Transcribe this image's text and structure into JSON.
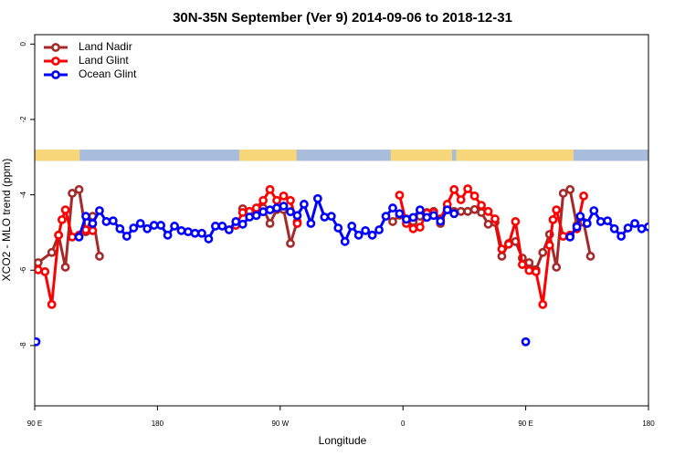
{
  "chart_data": {
    "type": "line",
    "title": "30N-35N September (Ver 9)   2014-09-06 to 2018-12-31",
    "xlabel": "Longitude",
    "ylabel": "XCO2 - MLO trend (ppm)",
    "xlim": [
      90,
      540
    ],
    "ylim": [
      -9.6,
      0.25
    ],
    "xticks": [
      {
        "value": 90,
        "label": "90 E"
      },
      180,
      {
        "value": 270,
        "label": "90 W"
      },
      {
        "value": 360,
        "label": "0"
      },
      {
        "value": 450,
        "label": "90 E"
      },
      {
        "value": 540,
        "label": "180"
      }
    ],
    "yticks": [
      0,
      -2,
      -4,
      -6,
      -8
    ],
    "legend": "top-left",
    "grid": false,
    "land_band": {
      "ylim": [
        -3.1,
        -2.8
      ],
      "land_color": "#f7d77a",
      "ocean_color": "#a8bcdb",
      "land": [
        [
          90,
          123
        ],
        [
          240,
          282
        ],
        [
          351,
          396
        ],
        [
          399,
          485
        ]
      ]
    },
    "series": [
      {
        "name": "Land Nadir",
        "color": "#a52a2a",
        "x": [
          92.5,
          102.5,
          107.5,
          112.5,
          117.5,
          122.5,
          127.5,
          132.5,
          137.5,
          140,
          242.5,
          247.5,
          252.5,
          257.5,
          262.5,
          267.5,
          272.5,
          277.5,
          282.5,
          285,
          352.5,
          357.5,
          362.5,
          367.5,
          372.5,
          377.5,
          382.5,
          387.5,
          392.5,
          397.5,
          402.5,
          407.5,
          412.5,
          417.5,
          422.5,
          427.5,
          432.5,
          437.5,
          442.5,
          447.5,
          452.5,
          457.5,
          462.5,
          467.5,
          472.5,
          477.5,
          482.5,
          487.5,
          492.5,
          497.5
        ],
        "values": [
          -5.8,
          -5.53,
          -5.07,
          -5.92,
          -3.96,
          -3.86,
          -4.98,
          -4.57,
          -5.63,
          null,
          -4.37,
          -4.47,
          -4.42,
          -4.35,
          -4.76,
          -4.39,
          -4.39,
          -5.29,
          -4.71,
          null,
          -4.71,
          -4.54,
          -4.64,
          -4.71,
          -4.57,
          -4.47,
          -4.44,
          -4.76,
          -4.35,
          -4.44,
          -4.44,
          -4.44,
          -4.39,
          -4.47,
          -4.78,
          -4.73,
          -5.63,
          -5.29,
          -5.24,
          -5.68,
          -5.8,
          -5.99,
          -5.53,
          -5.05,
          -5.92,
          -3.96,
          -3.86,
          -4.81,
          -4.73,
          -5.63
        ]
      },
      {
        "name": "Land Glint",
        "color": "#ff0000",
        "x": [
          92.5,
          97.5,
          102.5,
          107.5,
          110,
          112.5,
          117.5,
          122.5,
          127.5,
          132.5,
          135,
          237.5,
          242.5,
          247.5,
          252.5,
          257.5,
          262.5,
          267.5,
          272.5,
          277.5,
          282.5,
          285,
          357.5,
          362.5,
          367.5,
          372.5,
          377.5,
          382.5,
          387.5,
          392.5,
          397.5,
          402.5,
          407.5,
          412.5,
          417.5,
          422.5,
          427.5,
          432.5,
          437.5,
          442.5,
          447.5,
          452.5,
          457.5,
          462.5,
          467.5,
          470,
          472.5,
          477.5,
          482.5,
          487.5,
          492.5
        ],
        "values": [
          -5.99,
          -6.04,
          -6.91,
          -5.07,
          -4.66,
          -4.4,
          -5.12,
          -5.07,
          -4.93,
          -4.95,
          null,
          -4.81,
          -4.47,
          -4.44,
          -4.35,
          -4.15,
          -3.86,
          -4.15,
          -4.03,
          -4.15,
          -4.76,
          null,
          -4.01,
          -4.76,
          -4.9,
          -4.86,
          -4.49,
          -4.47,
          -4.64,
          -4.25,
          -3.86,
          -4.13,
          -3.84,
          -4.03,
          -4.28,
          -4.44,
          -4.64,
          -5.44,
          -5.31,
          -4.71,
          -5.85,
          -6.01,
          -6.04,
          -6.91,
          -5.34,
          -4.66,
          -4.4,
          -5.1,
          -5.07,
          -4.9,
          -4.03
        ]
      },
      {
        "name": "Ocean Glint",
        "color": "#0000ff",
        "x": [
          91,
          95,
          122.5,
          127.5,
          132.5,
          137.5,
          142.5,
          147.5,
          152.5,
          157.5,
          162.5,
          167.5,
          172.5,
          177.5,
          182.5,
          187.5,
          192.5,
          197.5,
          202.5,
          207.5,
          212.5,
          217.5,
          222.5,
          227.5,
          232.5,
          237.5,
          242.5,
          247.5,
          252.5,
          257.5,
          262.5,
          267.5,
          272.5,
          277.5,
          282.5,
          287.5,
          292.5,
          297.5,
          302.5,
          307.5,
          312.5,
          317.5,
          322.5,
          327.5,
          332.5,
          337.5,
          342.5,
          347.5,
          352.5,
          357.5,
          362.5,
          367.5,
          372.5,
          377.5,
          382.5,
          387.5,
          392.5,
          397.5,
          400,
          450,
          455,
          482.5,
          487.5,
          490,
          495,
          500,
          505,
          510,
          515,
          520,
          525,
          530,
          535,
          540
        ],
        "values": [
          -7.9,
          null,
          -5.12,
          -4.57,
          -4.76,
          -4.42,
          -4.71,
          -4.69,
          -4.9,
          -5.1,
          -4.88,
          -4.76,
          -4.9,
          -4.81,
          -4.81,
          -5.07,
          -4.83,
          -4.95,
          -4.98,
          -5.02,
          -5.02,
          -5.17,
          -4.83,
          -4.83,
          -4.93,
          -4.71,
          -4.78,
          -4.59,
          -4.55,
          -4.45,
          -4.4,
          -4.35,
          -4.3,
          -4.45,
          -4.55,
          -4.25,
          -4.76,
          -4.1,
          -4.59,
          -4.57,
          -4.88,
          -5.24,
          -4.83,
          -5.07,
          -4.95,
          -5.07,
          -4.93,
          -4.57,
          -4.35,
          -4.5,
          -4.65,
          -4.6,
          -4.4,
          -4.6,
          -4.55,
          -4.7,
          -4.4,
          -4.5,
          null,
          -7.9,
          null,
          -5.12,
          -4.85,
          -4.57,
          -4.76,
          -4.42,
          -4.71,
          -4.69,
          -4.9,
          -5.1,
          -4.88,
          -4.76,
          -4.9,
          -4.85
        ]
      }
    ]
  }
}
